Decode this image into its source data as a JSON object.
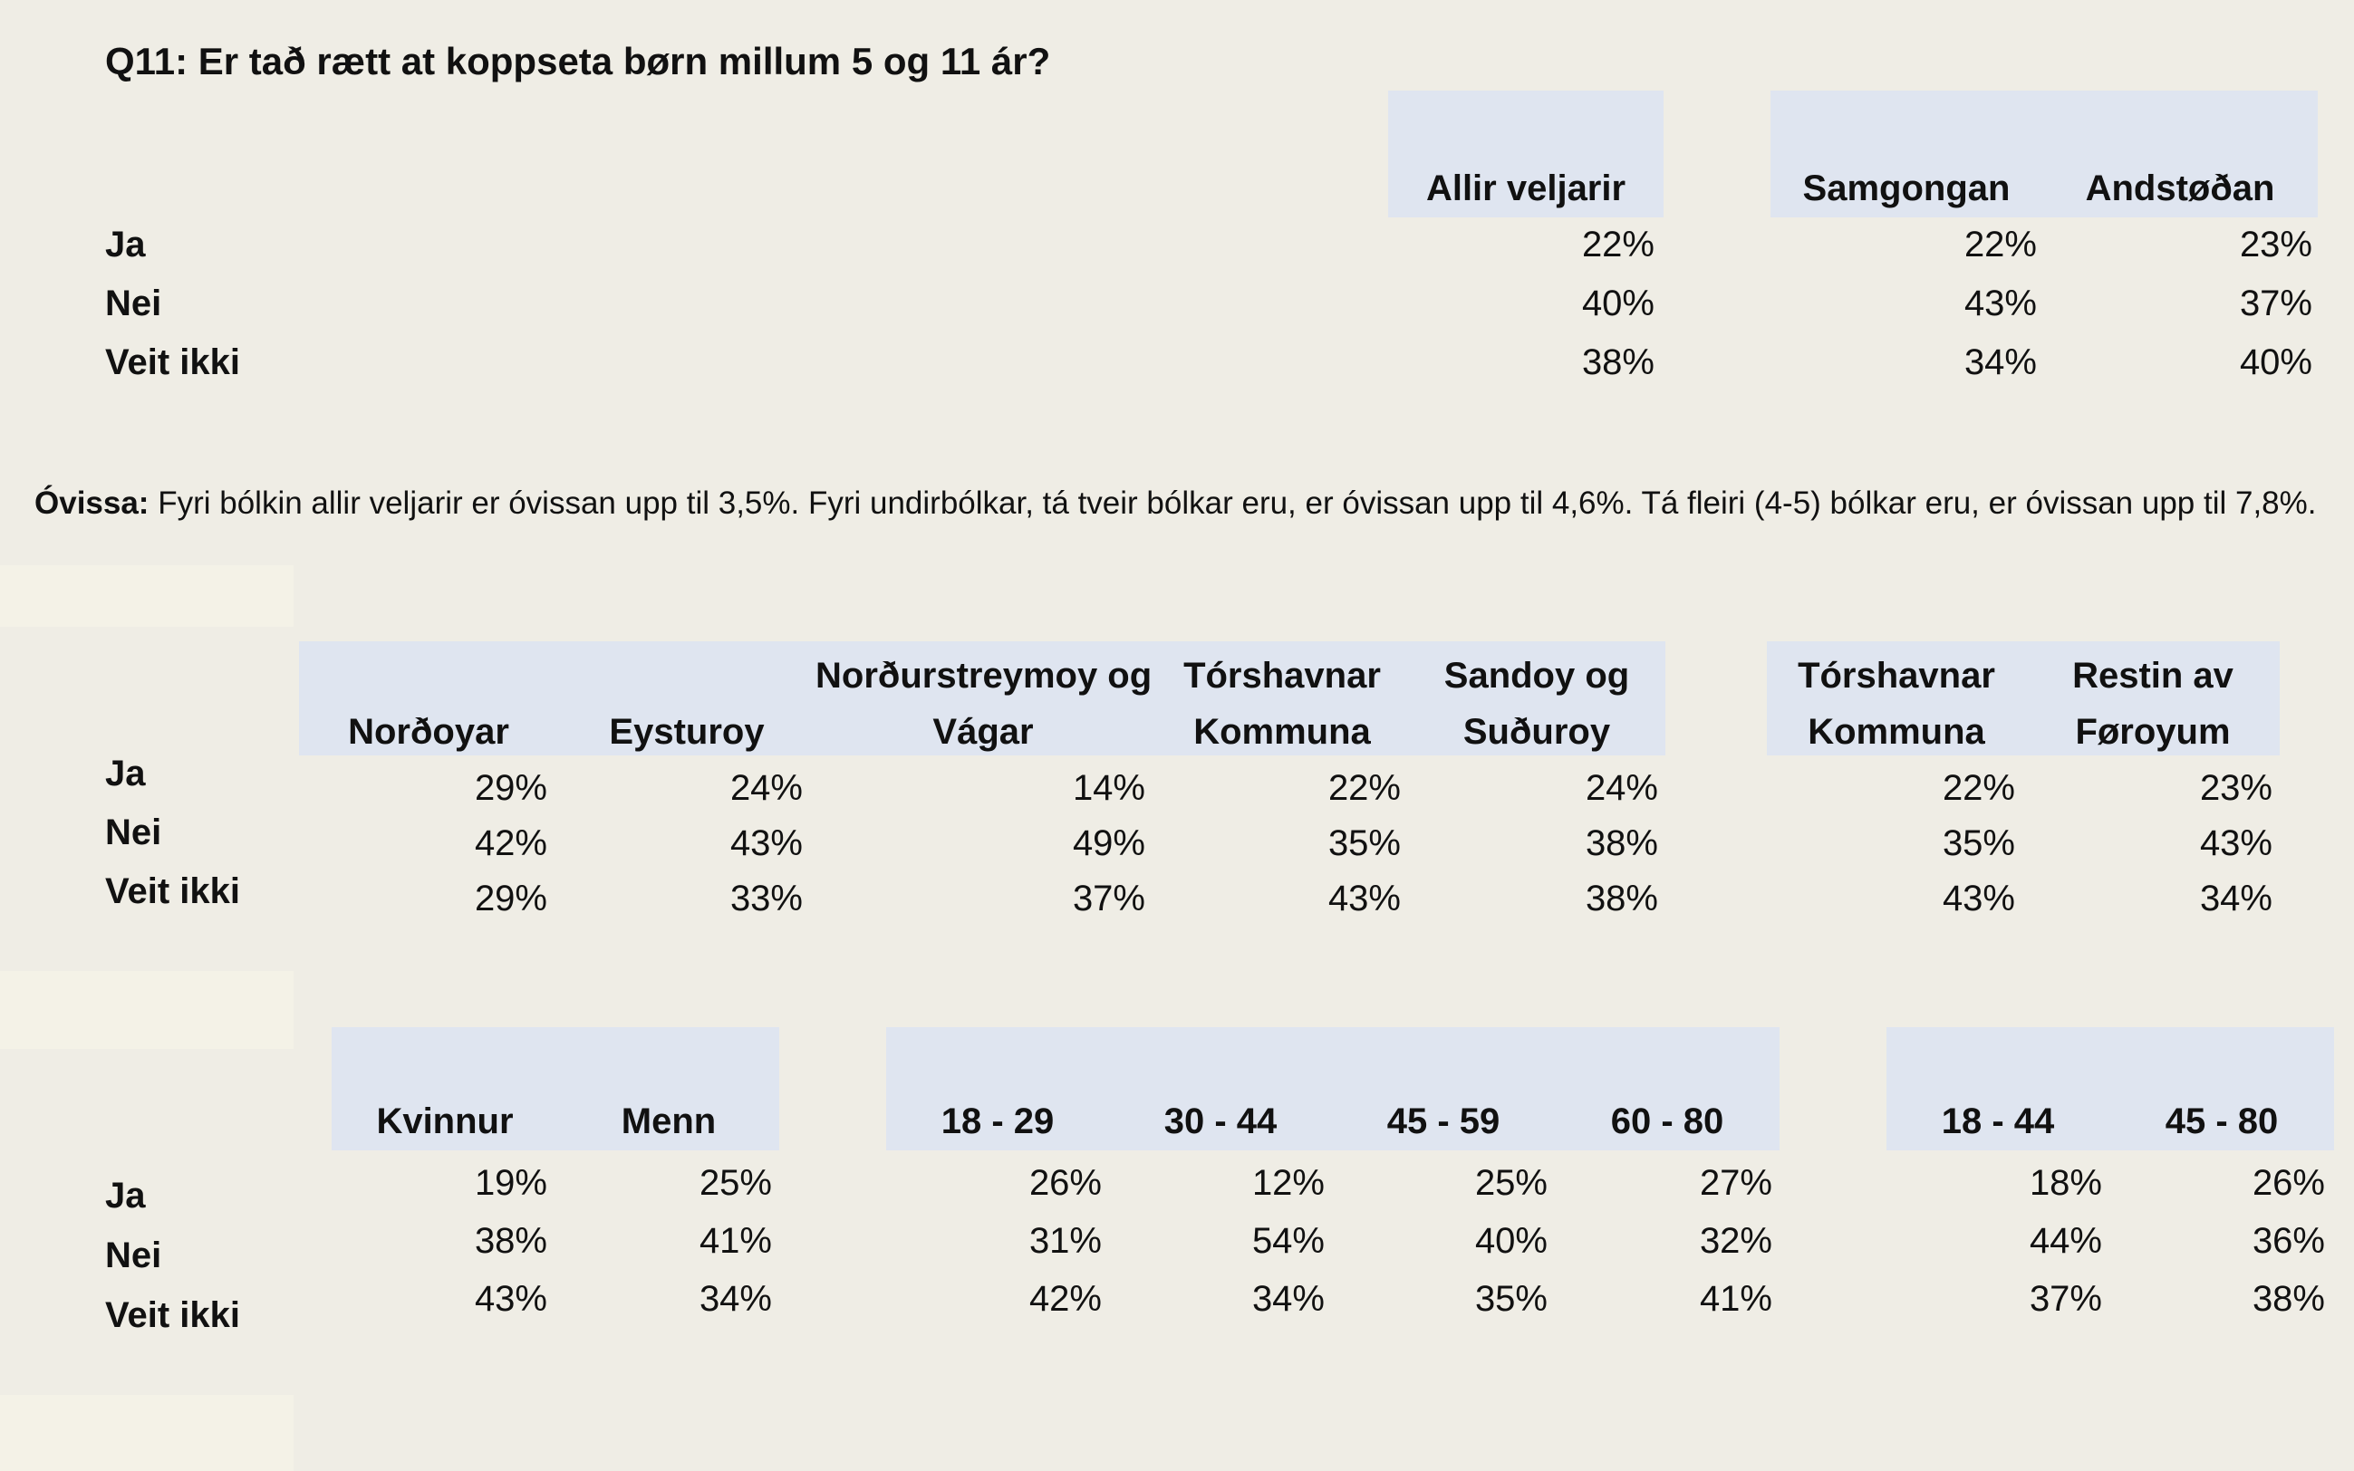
{
  "title": "Q11: Er tað rætt at koppseta børn millum 5 og 11 ár?",
  "rows": [
    "Ja",
    "Nei",
    "Veit ikki"
  ],
  "note": {
    "label": "Óvissa:",
    "text": "Fyri bólkin allir veljarir er óvissan upp til 3,5%. Fyri undirbólkar, tá tveir bólkar eru, er óvissan upp til 4,6%. Tá fleiri (4-5) bólkar eru, er óvissan upp til 7,8%."
  },
  "table1": {
    "headers": [
      "Allir veljarir",
      "Samgongan",
      "Andstøðan"
    ],
    "values": [
      [
        "22%",
        "22%",
        "23%"
      ],
      [
        "40%",
        "43%",
        "37%"
      ],
      [
        "38%",
        "34%",
        "40%"
      ]
    ]
  },
  "table2": {
    "headers": [
      [
        "",
        "Norðoyar"
      ],
      [
        "",
        "Eysturoy"
      ],
      [
        "Norðurstreymoy og",
        "Vágar"
      ],
      [
        "Tórshavnar",
        "Kommuna"
      ],
      [
        "Sandoy og",
        "Suðuroy"
      ],
      [
        "Tórshavnar",
        "Kommuna"
      ],
      [
        "Restin av",
        "Føroyum"
      ]
    ],
    "values": [
      [
        "29%",
        "24%",
        "14%",
        "22%",
        "24%",
        "22%",
        "23%"
      ],
      [
        "42%",
        "43%",
        "49%",
        "35%",
        "38%",
        "35%",
        "43%"
      ],
      [
        "29%",
        "33%",
        "37%",
        "43%",
        "38%",
        "43%",
        "34%"
      ]
    ]
  },
  "table3": {
    "headers": [
      "Kvinnur",
      "Menn",
      "18 - 29",
      "30 - 44",
      "45 - 59",
      "60 - 80",
      "18 - 44",
      "45 - 80"
    ],
    "values": [
      [
        "19%",
        "25%",
        "26%",
        "12%",
        "25%",
        "27%",
        "18%",
        "26%"
      ],
      [
        "38%",
        "41%",
        "31%",
        "54%",
        "40%",
        "32%",
        "44%",
        "36%"
      ],
      [
        "43%",
        "34%",
        "42%",
        "34%",
        "35%",
        "41%",
        "37%",
        "38%"
      ]
    ]
  }
}
